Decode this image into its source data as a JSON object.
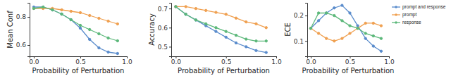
{
  "chart_data": [
    {
      "type": "line",
      "x_label": "Probability of Perturbation",
      "y_label": "Mean Conf",
      "x": [
        0,
        0.1,
        0.2,
        0.3,
        0.4,
        0.5,
        0.6,
        0.7,
        0.8,
        0.9
      ],
      "xlim": [
        -0.045,
        1.0
      ],
      "ylim": [
        0.52,
        0.9
      ],
      "xticks": [
        {
          "value": 0,
          "label": "0.0"
        },
        {
          "value": 0.5,
          "label": "0.5"
        },
        {
          "value": 1.0,
          "label": "1.0"
        }
      ],
      "yticks": [
        {
          "value": 0.6,
          "label": "0.6"
        },
        {
          "value": 0.8,
          "label": "0.8"
        }
      ],
      "series": [
        {
          "name": "prompt and response",
          "color": "#5a8ccc",
          "marker": "circle",
          "values": [
            0.87,
            0.87,
            0.85,
            0.82,
            0.78,
            0.72,
            0.64,
            0.58,
            0.55,
            0.54
          ]
        },
        {
          "name": "prompt",
          "color": "#f0a050",
          "marker": "circle",
          "values": [
            0.86,
            0.86,
            0.86,
            0.85,
            0.84,
            0.83,
            0.81,
            0.79,
            0.77,
            0.75
          ]
        },
        {
          "name": "response",
          "color": "#5cb87a",
          "marker": "circle",
          "values": [
            0.86,
            0.87,
            0.85,
            0.82,
            0.78,
            0.74,
            0.71,
            0.68,
            0.65,
            0.63
          ]
        }
      ]
    },
    {
      "type": "line",
      "x_label": "Probability of Perturbation",
      "y_label": "Accuracy",
      "x": [
        0,
        0.1,
        0.2,
        0.3,
        0.4,
        0.5,
        0.6,
        0.7,
        0.8,
        0.9
      ],
      "xlim": [
        -0.045,
        1.0
      ],
      "ylim": [
        0.45,
        0.73
      ],
      "xticks": [
        {
          "value": 0,
          "label": "0.0"
        },
        {
          "value": 0.5,
          "label": "0.5"
        },
        {
          "value": 1.0,
          "label": "1.0"
        }
      ],
      "yticks": [
        {
          "value": 0.5,
          "label": "0.5"
        },
        {
          "value": 0.6,
          "label": "0.6"
        },
        {
          "value": 0.7,
          "label": "0.7"
        }
      ],
      "series": [
        {
          "name": "prompt and response",
          "color": "#5a8ccc",
          "marker": "circle",
          "values": [
            0.71,
            0.67,
            0.64,
            0.61,
            0.58,
            0.55,
            0.52,
            0.5,
            0.48,
            0.47
          ]
        },
        {
          "name": "prompt",
          "color": "#f0a050",
          "marker": "circle",
          "values": [
            0.71,
            0.71,
            0.7,
            0.69,
            0.68,
            0.67,
            0.65,
            0.63,
            0.62,
            0.6
          ]
        },
        {
          "name": "response",
          "color": "#5cb87a",
          "marker": "circle",
          "values": [
            0.71,
            0.67,
            0.64,
            0.62,
            0.6,
            0.58,
            0.56,
            0.54,
            0.53,
            0.53
          ]
        }
      ]
    },
    {
      "type": "line",
      "x_label": "Probability of Perturbation",
      "y_label": "ECE",
      "legend": "right",
      "x": [
        0,
        0.1,
        0.2,
        0.3,
        0.4,
        0.5,
        0.6,
        0.7,
        0.8,
        0.9
      ],
      "xlim": [
        -0.045,
        1.0
      ],
      "ylim": [
        0.04,
        0.25
      ],
      "xticks": [
        {
          "value": 0,
          "label": "0.0"
        },
        {
          "value": 0.5,
          "label": "0.5"
        },
        {
          "value": 1.0,
          "label": "1.0"
        }
      ],
      "yticks": [
        {
          "value": 0.1,
          "label": "0.1"
        },
        {
          "value": 0.2,
          "label": "0.2"
        }
      ],
      "series": [
        {
          "name": "prompt and response",
          "color": "#5a8ccc",
          "marker": "circle",
          "values": [
            0.15,
            0.18,
            0.21,
            0.23,
            0.24,
            0.21,
            0.16,
            0.11,
            0.08,
            0.06
          ]
        },
        {
          "name": "prompt",
          "color": "#f0a050",
          "marker": "circle",
          "values": [
            0.15,
            0.13,
            0.11,
            0.1,
            0.11,
            0.13,
            0.15,
            0.17,
            0.17,
            0.16
          ]
        },
        {
          "name": "response",
          "color": "#5cb87a",
          "marker": "circle",
          "values": [
            0.15,
            0.21,
            0.21,
            0.2,
            0.18,
            0.16,
            0.15,
            0.13,
            0.12,
            0.11
          ]
        }
      ]
    }
  ]
}
